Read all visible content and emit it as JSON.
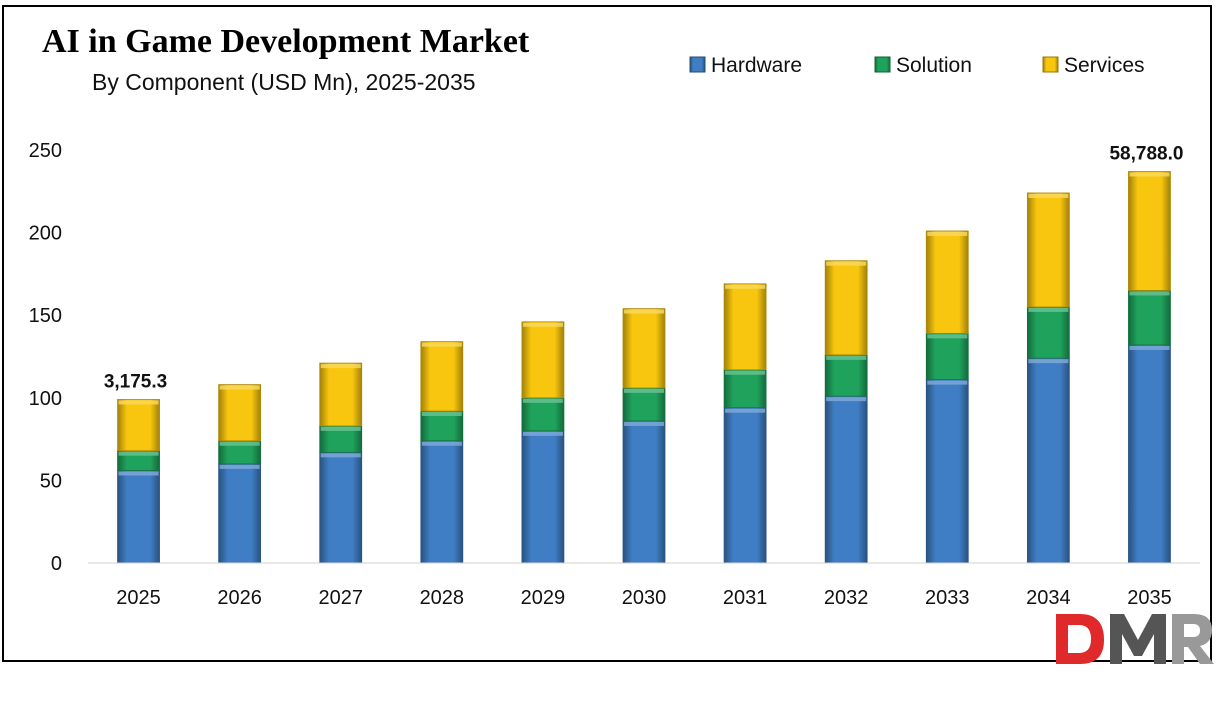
{
  "chart_data": {
    "type": "bar",
    "stacked": true,
    "title": "AI in Game Development Market",
    "subtitle": "By Component (USD Mn), 2025-2035",
    "xlabel": "",
    "ylabel": "",
    "categories": [
      "2025",
      "2026",
      "2027",
      "2028",
      "2029",
      "2030",
      "2031",
      "2032",
      "2033",
      "2034",
      "2035"
    ],
    "series": [
      {
        "name": "Hardware",
        "color": "#3f7ec4",
        "values": [
          56,
          60,
          67,
          74,
          80,
          86,
          94,
          101,
          111,
          124,
          132
        ]
      },
      {
        "name": "Solution",
        "color": "#1fa35c",
        "values": [
          12,
          14,
          16,
          18,
          20,
          20,
          23,
          25,
          28,
          31,
          33
        ]
      },
      {
        "name": "Services",
        "color": "#f8c60e",
        "values": [
          31,
          34,
          38,
          42,
          46,
          48,
          52,
          57,
          62,
          69,
          72
        ]
      }
    ],
    "ylim": [
      0,
      250
    ],
    "yticks": [
      0,
      50,
      100,
      150,
      200,
      250
    ],
    "grid": false,
    "legend_position": "top-right",
    "annotations": [
      {
        "category": "2025",
        "text": "3,175.3"
      },
      {
        "category": "2035",
        "text": "58,788.0"
      }
    ]
  },
  "logo": {
    "text": "DMR"
  }
}
